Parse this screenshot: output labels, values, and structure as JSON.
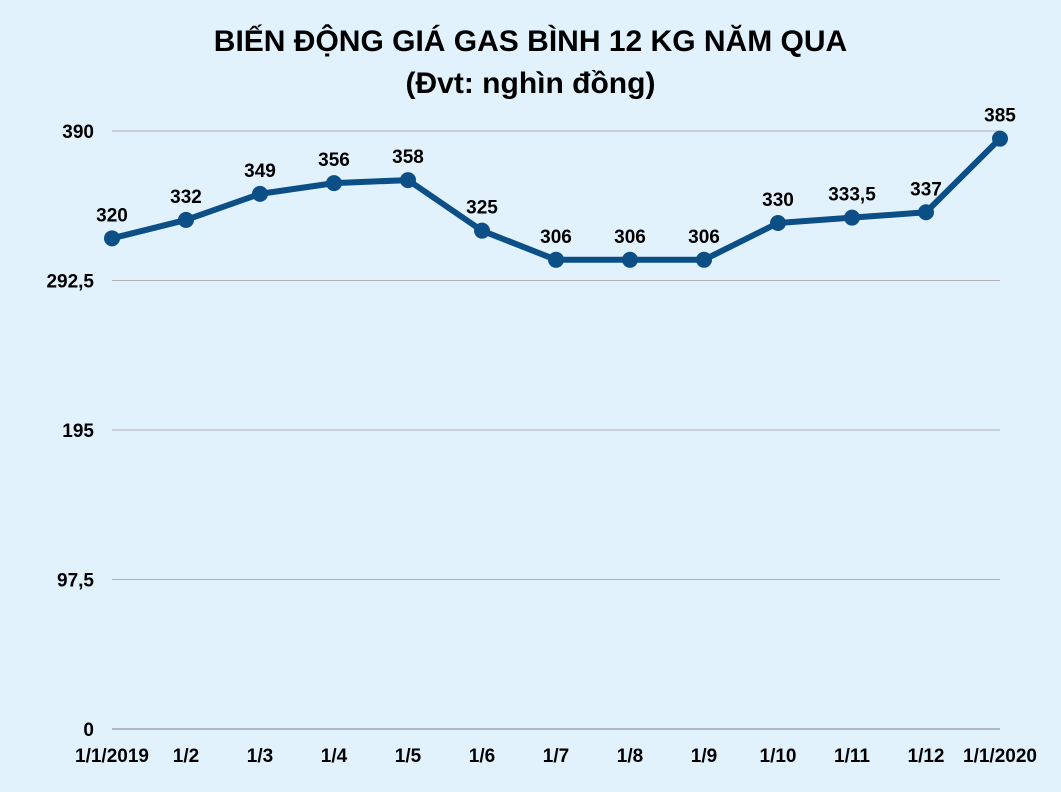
{
  "title": "BIẾN ĐỘNG GIÁ GAS BÌNH 12 KG NĂM QUA",
  "subtitle": "(Đvt: nghìn đồng)",
  "colors": {
    "background": "#e2f2fd",
    "line": "#0b4f86",
    "grid": "#b3b3b3"
  },
  "chart_data": {
    "type": "line",
    "title": "BIẾN ĐỘNG GIÁ GAS BÌNH 12 KG NĂM QUA",
    "subtitle": "(Đvt: nghìn đồng)",
    "xlabel": "",
    "ylabel": "",
    "ylim": [
      0,
      390
    ],
    "y_ticks": [
      0,
      97.5,
      195,
      292.5,
      390
    ],
    "y_tick_labels": [
      "0",
      "97,5",
      "195",
      "292,5",
      "390"
    ],
    "grid": true,
    "legend": "none",
    "categories": [
      "1/1/2019",
      "1/2",
      "1/3",
      "1/4",
      "1/5",
      "1/6",
      "1/7",
      "1/8",
      "1/9",
      "1/10",
      "1/11",
      "1/12",
      "1/1/2020"
    ],
    "values": [
      320,
      332,
      349,
      356,
      358,
      325,
      306,
      306,
      306,
      330,
      333.5,
      337,
      385
    ],
    "value_labels": [
      "320",
      "332",
      "349",
      "356",
      "358",
      "325",
      "306",
      "306",
      "306",
      "330",
      "333,5",
      "337",
      "385"
    ]
  }
}
